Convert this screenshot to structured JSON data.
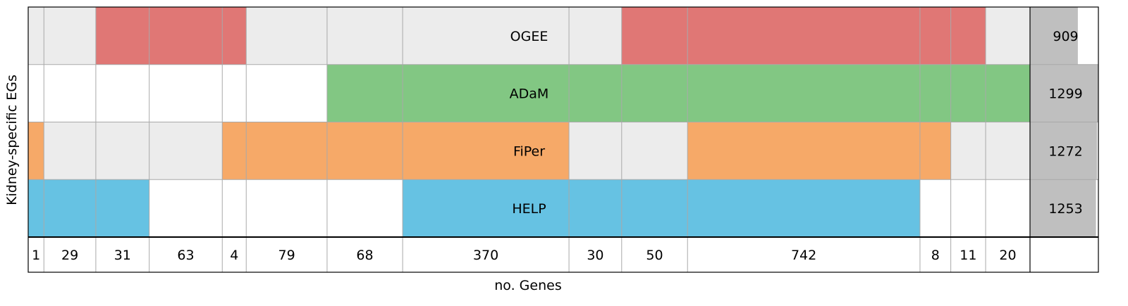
{
  "chart_data": {
    "type": "heatmap",
    "title": "",
    "xlabel": "no. Genes",
    "ylabel": "Kidney-specific EGs",
    "columns": [
      {
        "count": 1,
        "members": [
          "FiPer",
          "HELP"
        ]
      },
      {
        "count": 29,
        "members": [
          "HELP"
        ]
      },
      {
        "count": 31,
        "members": [
          "OGEE",
          "HELP"
        ]
      },
      {
        "count": 63,
        "members": [
          "OGEE"
        ]
      },
      {
        "count": 4,
        "members": [
          "OGEE",
          "FiPer"
        ]
      },
      {
        "count": 79,
        "members": [
          "FiPer"
        ]
      },
      {
        "count": 68,
        "members": [
          "ADaM",
          "FiPer"
        ]
      },
      {
        "count": 370,
        "members": [
          "ADaM",
          "FiPer",
          "HELP"
        ]
      },
      {
        "count": 30,
        "members": [
          "ADaM",
          "HELP"
        ]
      },
      {
        "count": 50,
        "members": [
          "OGEE",
          "ADaM",
          "HELP"
        ]
      },
      {
        "count": 742,
        "members": [
          "OGEE",
          "ADaM",
          "FiPer",
          "HELP"
        ]
      },
      {
        "count": 8,
        "members": [
          "OGEE",
          "ADaM",
          "FiPer"
        ]
      },
      {
        "count": 11,
        "members": [
          "OGEE",
          "ADaM"
        ]
      },
      {
        "count": 20,
        "members": [
          "ADaM"
        ]
      }
    ],
    "sets": [
      {
        "name": "OGEE",
        "total": "909",
        "color": "#e07775",
        "off_color": "#ececec"
      },
      {
        "name": "ADaM",
        "total": "1299",
        "color": "#82c783",
        "off_color": "#ffffff"
      },
      {
        "name": "FiPer",
        "total": "1272",
        "color": "#f6a968",
        "off_color": "#ececec"
      },
      {
        "name": "HELP",
        "total": "1253",
        "color": "#66c2e3",
        "off_color": "#ffffff"
      }
    ],
    "totals_max": 1299,
    "totals_bar_color": "#bfbfbf"
  }
}
